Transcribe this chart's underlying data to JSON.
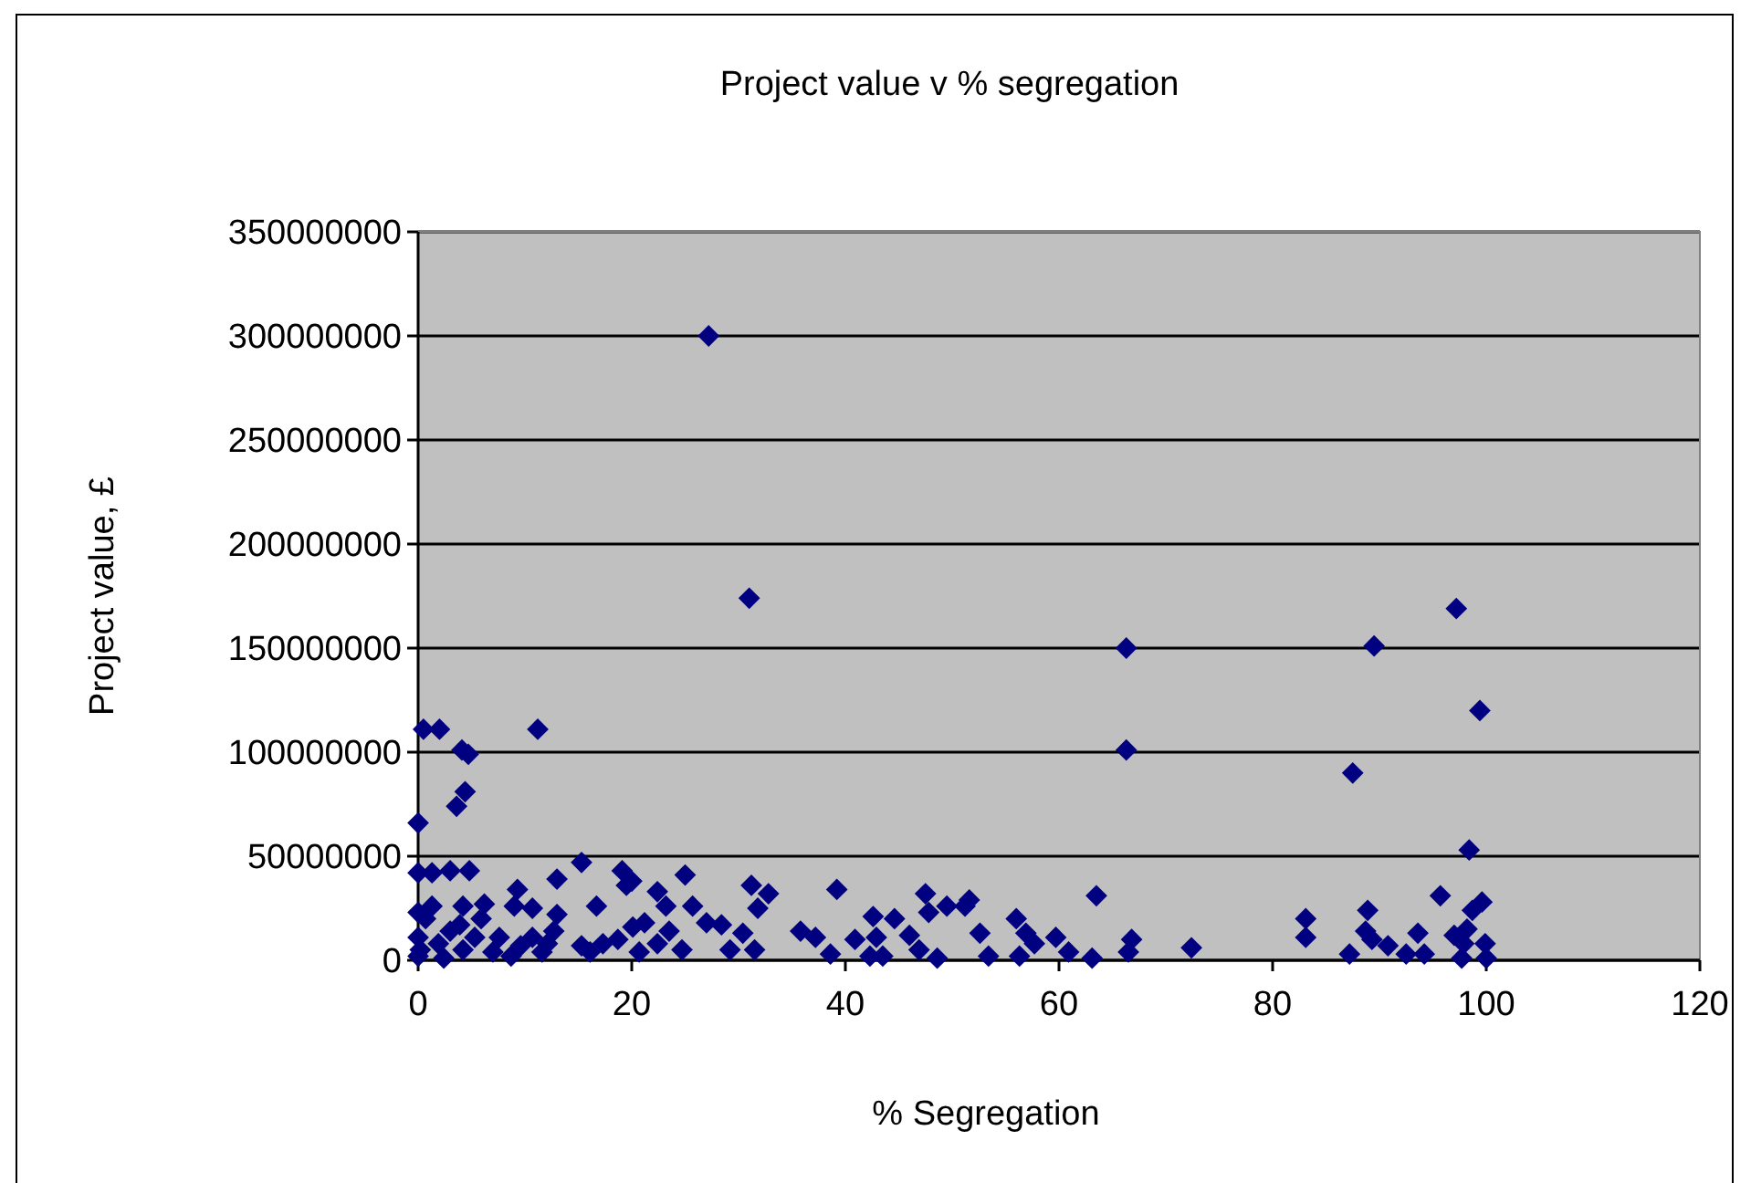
{
  "chart_data": {
    "type": "scatter",
    "title": "Project value v % segregation",
    "xlabel": "% Segregation",
    "ylabel": "Project value, £",
    "xlim": [
      0,
      120
    ],
    "xticks": [
      0,
      20,
      40,
      60,
      80,
      100,
      120
    ],
    "ylim": [
      0,
      350000000
    ],
    "yticks": [
      0,
      50000000,
      100000000,
      150000000,
      200000000,
      250000000,
      300000000,
      350000000
    ],
    "grid": "y",
    "marker": "diamond",
    "series": [
      {
        "color": "#000080",
        "x": [
          27.2,
          31,
          66.3,
          66.3,
          89.5,
          97.2,
          99.4,
          87.5,
          98.4,
          0.5,
          2,
          11.2,
          4.1,
          4.7,
          4.4,
          3.6,
          0,
          0,
          1.3,
          3,
          4.8,
          15.3,
          13,
          19.1,
          19.5,
          20,
          25,
          9.3,
          31.2,
          32.8,
          31.8,
          16.7,
          25.7,
          22.4,
          23.2,
          9,
          10.7,
          13,
          6.2,
          4.2,
          1.3,
          0,
          39.2,
          35.8,
          37.2,
          38.6,
          30.4,
          31.5,
          27,
          28.4,
          29.2,
          21.2,
          20.1,
          23.5,
          24.7,
          22.4,
          20.7,
          15.3,
          17.3,
          18.7,
          16.1,
          7.6,
          7,
          9.6,
          10.7,
          12.1,
          12.7,
          11.6,
          8.7,
          5.9,
          5.3,
          4.2,
          3,
          1.9,
          0.7,
          0,
          0,
          2.4,
          3.9,
          0.2,
          42.6,
          40.9,
          42.9,
          42.3,
          43.5,
          44.6,
          47.5,
          47.8,
          49.5,
          51.2,
          51.6,
          46,
          46.9,
          48.6,
          52.6,
          53.4,
          56,
          56.9,
          57.7,
          56.3,
          59.7,
          60.9,
          63.5,
          63.1,
          66.8,
          66.5,
          72.4,
          83.1,
          83.1,
          88.9,
          88.7,
          89.3,
          87.2,
          90.8,
          92.5,
          93.6,
          94.2,
          95.7,
          99.6,
          98.7,
          97,
          98.2,
          97.9,
          99.9,
          97.7,
          100
        ],
        "values": [
          300000000,
          174000000,
          150000000,
          101000000,
          151000000,
          169000000,
          120000000,
          90000000,
          53000000,
          111000000,
          111000000,
          111000000,
          101000000,
          99000000,
          81000000,
          74000000,
          66000000,
          42000000,
          42000000,
          43000000,
          43000000,
          47000000,
          39000000,
          43000000,
          36000000,
          38000000,
          41000000,
          34000000,
          36000000,
          32000000,
          25000000,
          26000000,
          26000000,
          33000000,
          26000000,
          26000000,
          25000000,
          22000000,
          27000000,
          26000000,
          26000000,
          23000000,
          34000000,
          14000000,
          11000000,
          3000000,
          13000000,
          5000000,
          18000000,
          17000000,
          5000000,
          18000000,
          16000000,
          14000000,
          5000000,
          8000000,
          4000000,
          7000000,
          8000000,
          10000000,
          4000000,
          11000000,
          4000000,
          7000000,
          11000000,
          8000000,
          14000000,
          4000000,
          2000000,
          20000000,
          11000000,
          5000000,
          14000000,
          8000000,
          20000000,
          11000000,
          2000000,
          1000000,
          17000000,
          5000000,
          21000000,
          10000000,
          11000000,
          2000000,
          2000000,
          20000000,
          32000000,
          23000000,
          26000000,
          26000000,
          29000000,
          12000000,
          5000000,
          1000000,
          13000000,
          2000000,
          20000000,
          13000000,
          8000000,
          2000000,
          11000000,
          4000000,
          31000000,
          1000000,
          10000000,
          4000000,
          6000000,
          20000000,
          11000000,
          24000000,
          14000000,
          10000000,
          3000000,
          7000000,
          3000000,
          13000000,
          3000000,
          31000000,
          28000000,
          24000000,
          12000000,
          15000000,
          8000000,
          8000000,
          1000000,
          1000000
        ]
      }
    ]
  }
}
